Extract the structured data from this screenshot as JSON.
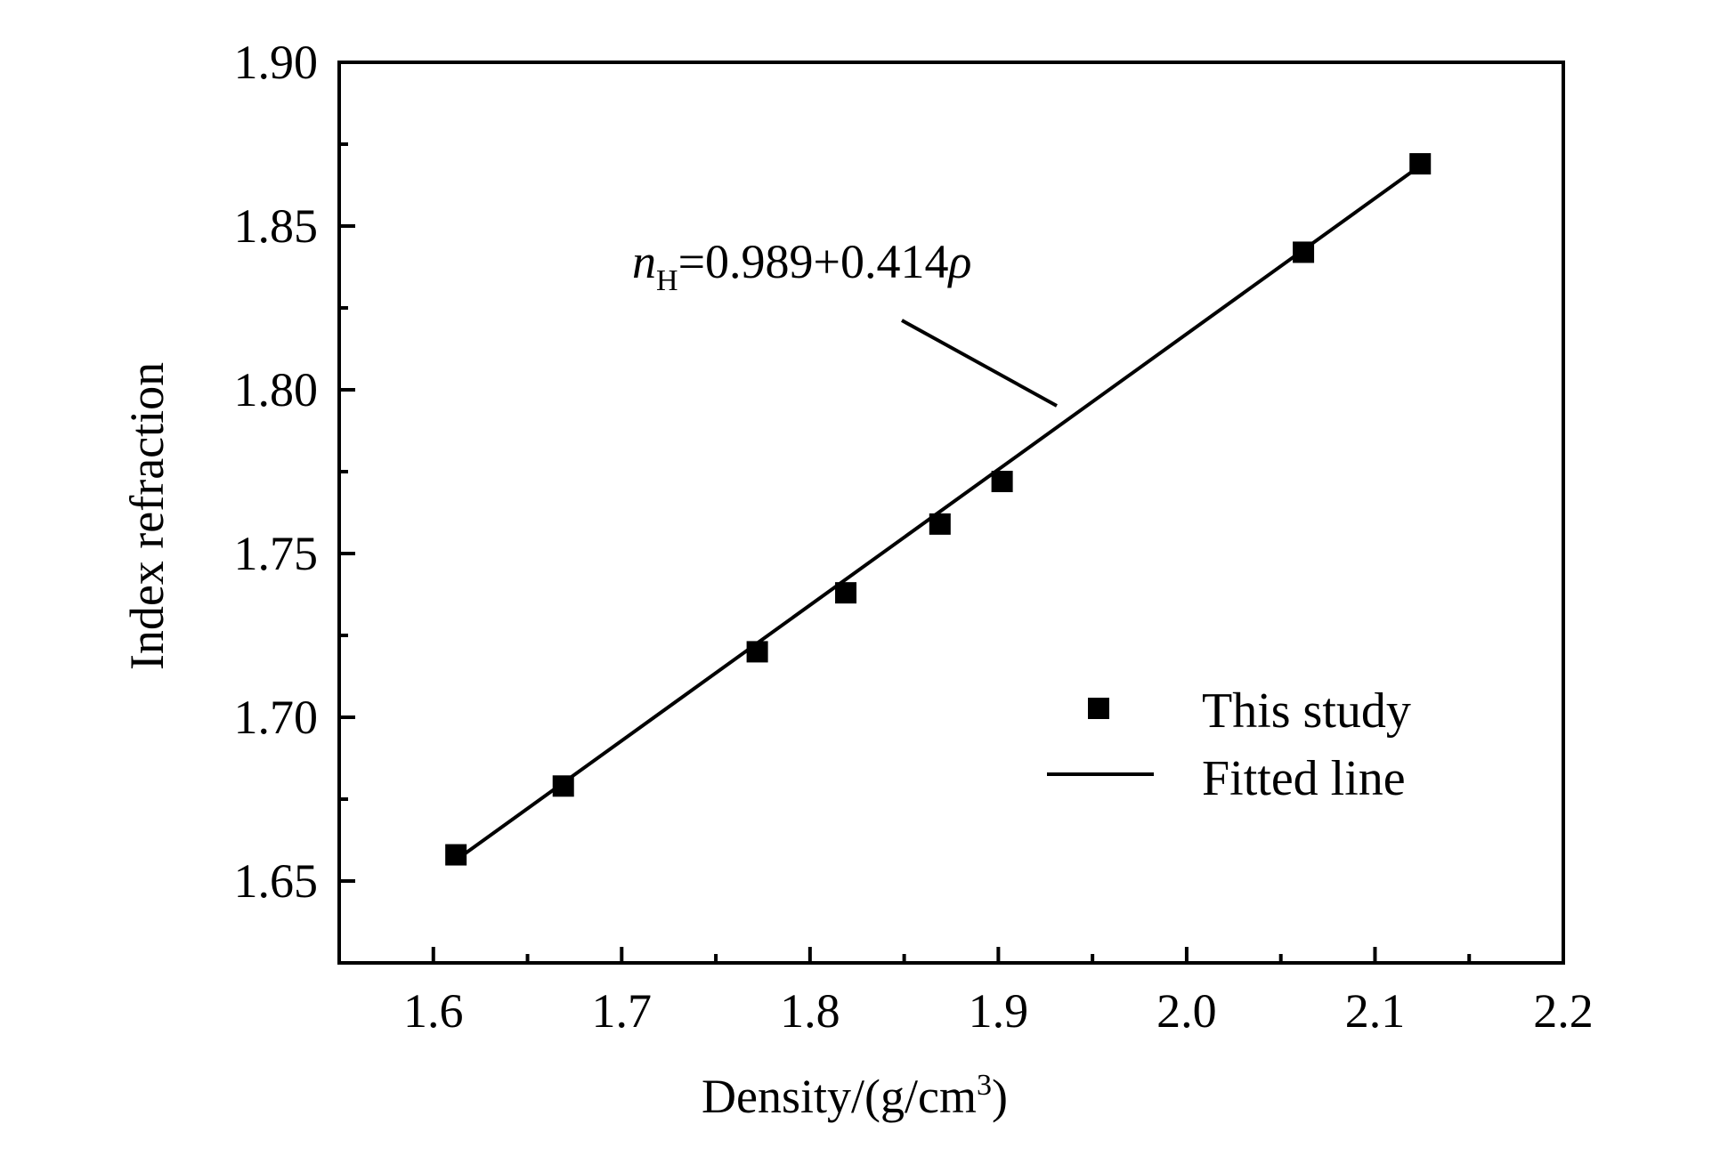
{
  "chart_data": {
    "type": "scatter",
    "xlabel": "Density/(g/cm",
    "xlabel_sup": "3",
    "xlabel_close": ")",
    "ylabel": "Index refraction",
    "xlim": [
      1.55,
      2.2
    ],
    "ylim": [
      1.625,
      1.9
    ],
    "xticks": [
      1.6,
      1.7,
      1.8,
      1.9,
      2.0,
      2.1,
      2.2
    ],
    "xtick_labels": [
      "1.6",
      "1.7",
      "1.8",
      "1.9",
      "2.0",
      "2.1",
      "2.2"
    ],
    "yticks": [
      1.65,
      1.7,
      1.75,
      1.8,
      1.85,
      1.9
    ],
    "ytick_labels": [
      "1.65",
      "1.70",
      "1.75",
      "1.80",
      "1.85",
      "1.90"
    ],
    "x_minor_ticks": [
      1.65,
      1.75,
      1.85,
      1.95,
      2.05,
      2.15
    ],
    "y_minor_ticks": [
      1.675,
      1.725,
      1.775,
      1.825,
      1.875
    ],
    "series": [
      {
        "name": "This study",
        "marker": "square",
        "x": [
          1.612,
          1.669,
          1.772,
          1.819,
          1.869,
          1.902,
          2.062,
          2.124
        ],
        "y": [
          1.658,
          1.679,
          1.72,
          1.738,
          1.759,
          1.772,
          1.842,
          1.869
        ]
      },
      {
        "name": "Fitted line",
        "line": "solid",
        "x": [
          1.612,
          2.124
        ],
        "y": [
          1.6564,
          1.8684
        ]
      }
    ],
    "annotation": {
      "symbol": "n",
      "subscript": "H",
      "text": "=0.989+0.414",
      "rho": "ρ"
    },
    "grid": false,
    "legend_position": "lower-right",
    "colors": {
      "marker": "#000000",
      "line": "#000000"
    }
  }
}
